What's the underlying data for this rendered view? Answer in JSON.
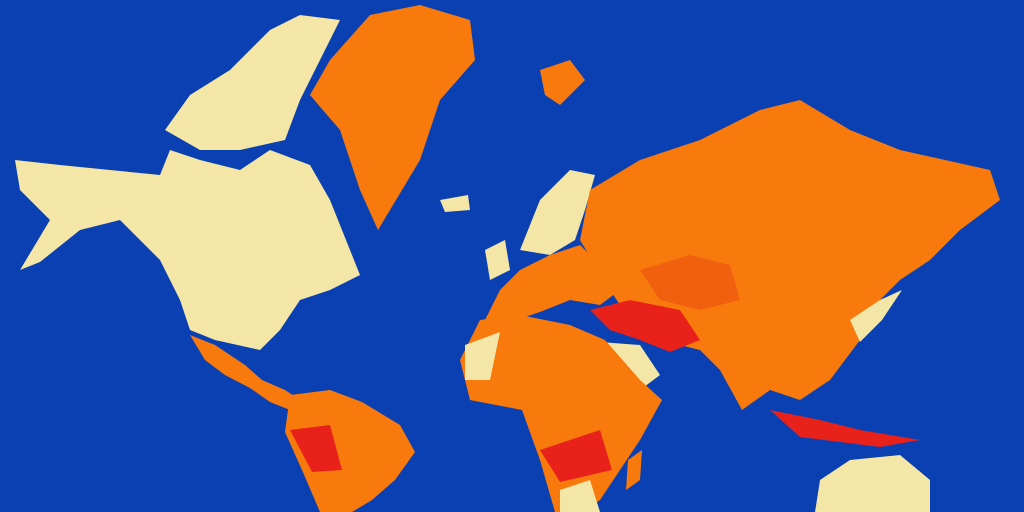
{
  "map": {
    "projection": "mercator",
    "colors": {
      "ocean": "#0b40b2",
      "low": "#f3e6a6",
      "medium": "#f97a0c",
      "medium_high": "#f0600e",
      "high": "#e8221b"
    }
  }
}
